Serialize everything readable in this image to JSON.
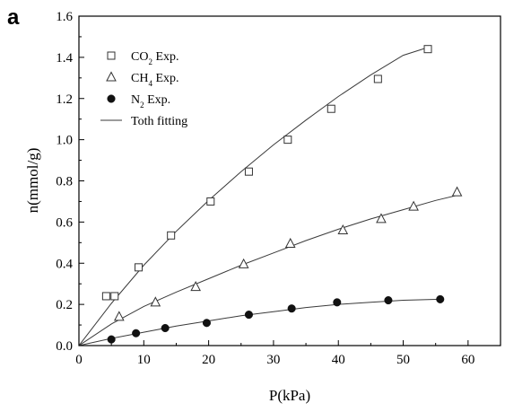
{
  "panel_label": "a",
  "chart_data": {
    "type": "scatter",
    "xlabel": "P(kPa)",
    "ylabel": "n(mmol/g)",
    "xlim": [
      0,
      65
    ],
    "ylim": [
      0,
      1.6
    ],
    "x_ticks": [
      0,
      10,
      20,
      30,
      40,
      50,
      60
    ],
    "y_ticks": [
      0.0,
      0.2,
      0.4,
      0.6,
      0.8,
      1.0,
      1.2,
      1.4,
      1.6
    ],
    "x_tick_labels": [
      "0",
      "10",
      "20",
      "30",
      "40",
      "50",
      "60"
    ],
    "y_tick_labels": [
      "0.0",
      "0.2",
      "0.4",
      "0.6",
      "0.8",
      "1.0",
      "1.2",
      "1.4",
      "1.6"
    ],
    "grid": false,
    "legend_position": "top-left",
    "series": [
      {
        "name": "CO2 Exp.",
        "legend_text": "CO",
        "legend_sub": "2",
        "legend_suffix": " Exp.",
        "marker": "open-square",
        "x": [
          4.2,
          5.5,
          9.2,
          14.2,
          20.3,
          26.2,
          32.2,
          38.9,
          46.1,
          53.8
        ],
        "y": [
          0.24,
          0.24,
          0.38,
          0.535,
          0.7,
          0.845,
          1.0,
          1.15,
          1.295,
          1.44
        ],
        "fit": {
          "x": [
            0,
            5,
            10,
            15,
            20,
            25,
            30,
            35,
            40,
            45,
            50,
            54
          ],
          "y": [
            0,
            0.205,
            0.39,
            0.555,
            0.705,
            0.845,
            0.975,
            1.095,
            1.21,
            1.315,
            1.41,
            1.45
          ]
        }
      },
      {
        "name": "CH4 Exp.",
        "legend_text": "CH",
        "legend_sub": "4",
        "legend_suffix": " Exp.",
        "marker": "open-triangle",
        "x": [
          6.2,
          11.8,
          18.0,
          25.4,
          32.6,
          40.7,
          46.6,
          51.6,
          58.3
        ],
        "y": [
          0.14,
          0.21,
          0.285,
          0.395,
          0.495,
          0.56,
          0.615,
          0.675,
          0.745
        ],
        "fit": {
          "x": [
            0,
            5,
            10,
            15,
            20,
            25,
            30,
            35,
            40,
            45,
            50,
            55,
            58.3
          ],
          "y": [
            0,
            0.105,
            0.19,
            0.26,
            0.325,
            0.39,
            0.45,
            0.51,
            0.565,
            0.615,
            0.66,
            0.705,
            0.73
          ]
        }
      },
      {
        "name": "N2 Exp.",
        "legend_text": "N",
        "legend_sub": "2",
        "legend_suffix": " Exp.",
        "marker": "filled-circle",
        "x": [
          5.0,
          8.8,
          13.3,
          19.7,
          26.2,
          32.8,
          39.8,
          47.7,
          55.7
        ],
        "y": [
          0.03,
          0.06,
          0.085,
          0.11,
          0.15,
          0.18,
          0.21,
          0.22,
          0.225
        ],
        "fit": {
          "x": [
            0,
            5,
            10,
            15,
            20,
            25,
            30,
            35,
            40,
            45,
            50,
            55.7
          ],
          "y": [
            0,
            0.035,
            0.065,
            0.095,
            0.12,
            0.145,
            0.165,
            0.185,
            0.2,
            0.21,
            0.22,
            0.225
          ]
        }
      }
    ],
    "fit_legend": "Toth fitting",
    "colors": {
      "line": "#3a3a3a",
      "marker": "#333333",
      "axis": "#000000"
    }
  }
}
